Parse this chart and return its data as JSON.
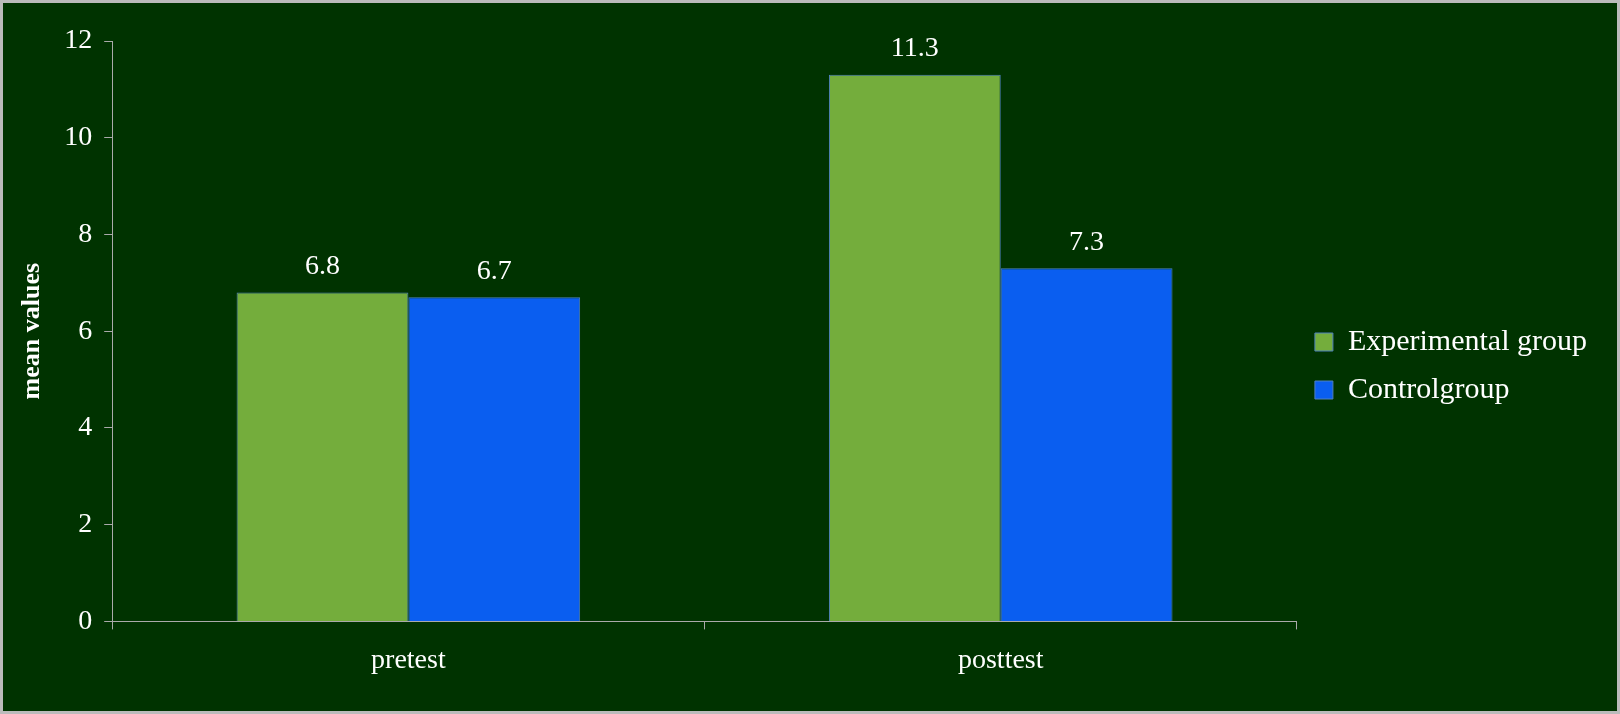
{
  "chart_data": {
    "type": "bar",
    "ylabel": "mean values",
    "categories": [
      "pretest",
      "posttest"
    ],
    "series": [
      {
        "name": "Experimental group",
        "color": "#74ad3c",
        "values": [
          6.8,
          11.3
        ]
      },
      {
        "name": "Controlgroup",
        "color": "#0a5ef0",
        "values": [
          6.7,
          7.3
        ]
      }
    ],
    "ylim": [
      0,
      12
    ],
    "yticks": [
      0,
      2,
      4,
      6,
      8,
      10,
      12
    ],
    "grid": false,
    "legend": "right",
    "data_labels": true
  }
}
